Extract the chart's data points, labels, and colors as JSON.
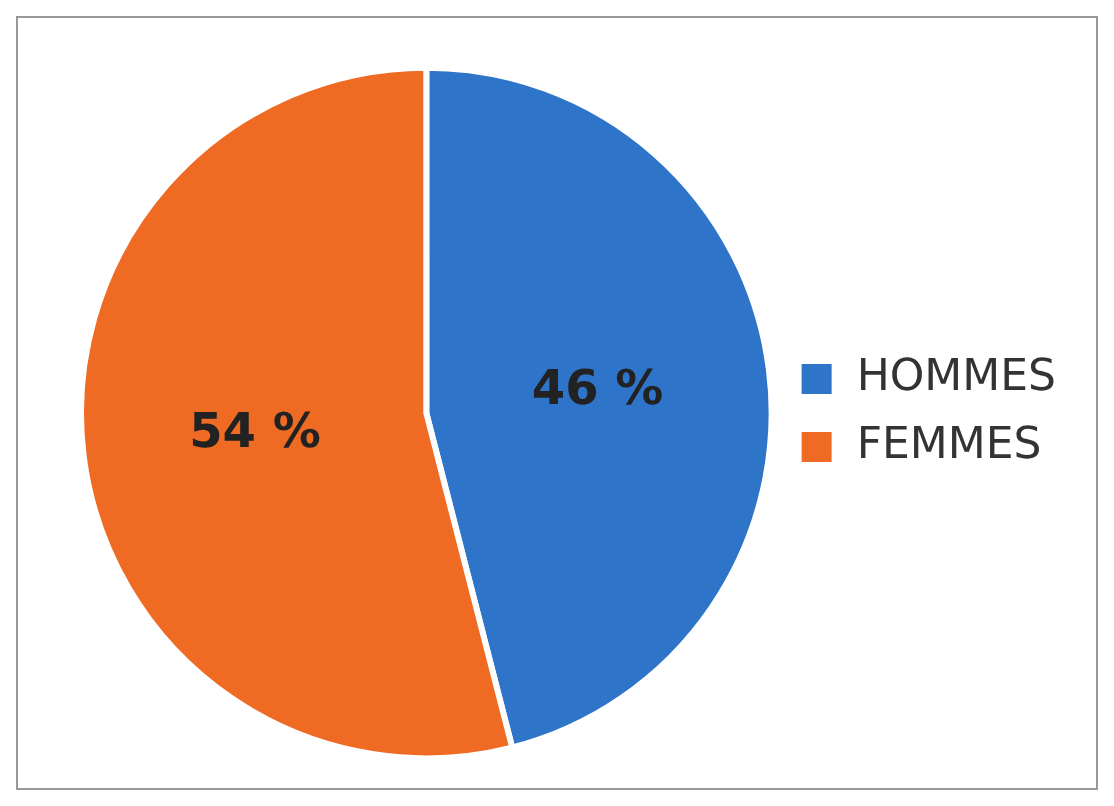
{
  "chart_data": {
    "type": "pie",
    "categories": [
      "HOMMES",
      "FEMMES"
    ],
    "values": [
      46,
      54
    ],
    "colors": [
      "#2e74c8",
      "#ef6b24"
    ],
    "value_labels": [
      "46 %",
      "54 %"
    ],
    "legend": "right"
  }
}
